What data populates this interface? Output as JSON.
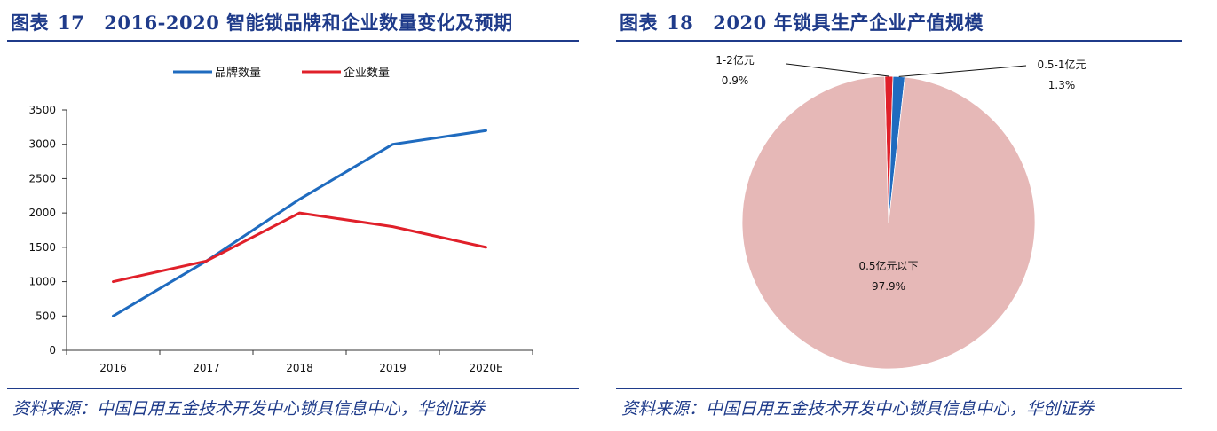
{
  "figure17": {
    "label": "图表",
    "number": "17",
    "title": "2016-2020 智能锁品牌和企业数量变化及预期",
    "source": "资料来源：中国日用五金技术开发中心锁具信息中心，华创证券",
    "chart_data": {
      "type": "line",
      "categories": [
        "2016",
        "2017",
        "2018",
        "2019",
        "2020E"
      ],
      "series": [
        {
          "name": "品牌数量",
          "color": "#1f6bbf",
          "values": [
            500,
            1300,
            2200,
            3000,
            3200
          ]
        },
        {
          "name": "企业数量",
          "color": "#e0202a",
          "values": [
            1000,
            1300,
            2000,
            1800,
            1500
          ]
        }
      ],
      "ylim": [
        0,
        3500
      ],
      "yticks": [
        0,
        500,
        1000,
        1500,
        2000,
        2500,
        3000,
        3500
      ],
      "legend": "top-center",
      "grid": false,
      "title": "",
      "xlabel": "",
      "ylabel": ""
    }
  },
  "figure18": {
    "label": "图表",
    "number": "18",
    "title": "2020 年锁具生产企业产值规模",
    "source": "资料来源：中国日用五金技术开发中心锁具信息中心，华创证券",
    "chart_data": {
      "type": "pie",
      "slices": [
        {
          "name": "0.5亿元以下",
          "value_label": "97.9%",
          "value": 97.9,
          "color": "#e6b8b7"
        },
        {
          "name": "1-2亿元",
          "value_label": "0.9%",
          "value": 0.9,
          "color": "#e0202a"
        },
        {
          "name": "0.5-1亿元",
          "value_label": "1.3%",
          "value": 1.3,
          "color": "#1f6bbf"
        }
      ],
      "legend": "none",
      "title": ""
    }
  }
}
